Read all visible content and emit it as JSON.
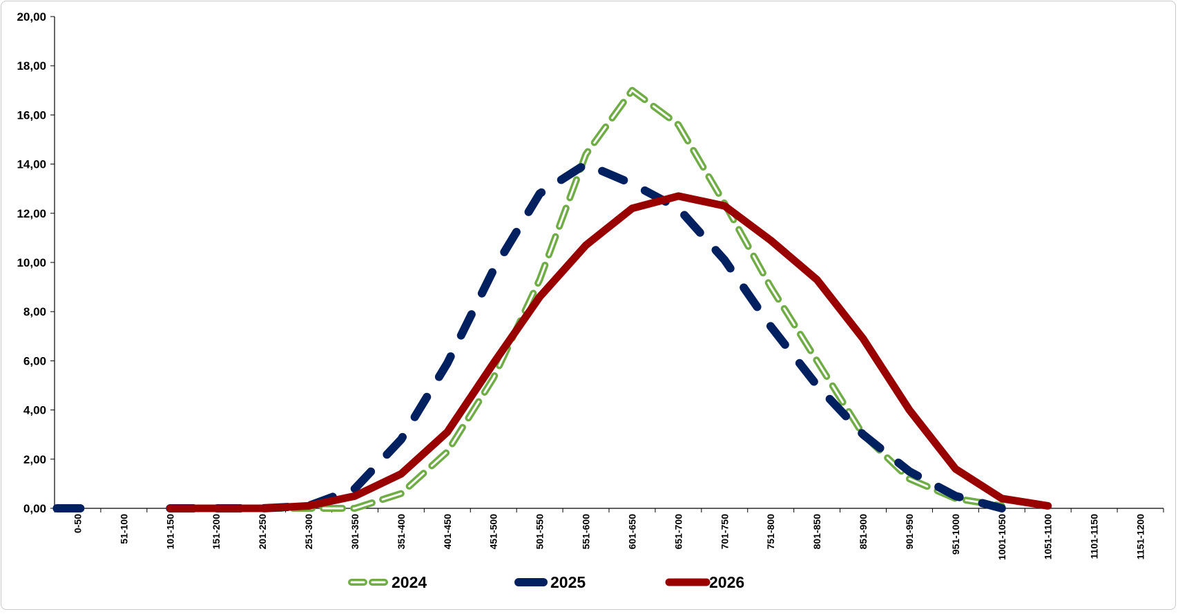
{
  "chart_data": {
    "type": "line",
    "categories": [
      "0-50",
      "51-100",
      "101-150",
      "151-200",
      "201-250",
      "251-300",
      "301-350",
      "351-400",
      "401-450",
      "451-500",
      "501-550",
      "551-600",
      "601-650",
      "651-700",
      "701-750",
      "751-800",
      "801-850",
      "851-900",
      "901-950",
      "951-1000",
      "1001-1050",
      "1051-1100",
      "1101-1150",
      "1151-1200"
    ],
    "yticks": [
      "0,00",
      "2,00",
      "4,00",
      "6,00",
      "8,00",
      "10,00",
      "12,00",
      "14,00",
      "16,00",
      "18,00",
      "20,00"
    ],
    "ylim": [
      0,
      20
    ],
    "grid": false,
    "legend": "bottom",
    "series": [
      {
        "name": "2024",
        "color": "#70ad47",
        "style": "dashed-outline",
        "values": [
          null,
          null,
          null,
          null,
          0,
          0,
          0,
          0.6,
          2.3,
          5.3,
          9.3,
          14.4,
          17.0,
          15.6,
          12.4,
          9.0,
          6.0,
          3.0,
          1.2,
          0.4,
          0.1,
          null,
          null,
          null
        ]
      },
      {
        "name": "2025",
        "color": "#002060",
        "style": "dashed",
        "values": [
          0,
          null,
          0,
          0,
          0,
          0.1,
          0.8,
          2.8,
          5.9,
          9.7,
          12.8,
          14.0,
          13.2,
          12.2,
          10.1,
          7.4,
          5.0,
          3.0,
          1.5,
          0.5,
          0,
          null,
          null,
          null
        ]
      },
      {
        "name": "2026",
        "color": "#990000",
        "style": "solid",
        "values": [
          null,
          null,
          0,
          0,
          0,
          0.1,
          0.5,
          1.4,
          3.1,
          5.9,
          8.6,
          10.7,
          12.2,
          12.7,
          12.3,
          10.9,
          9.3,
          6.9,
          4.0,
          1.6,
          0.4,
          0.1,
          null,
          null
        ]
      }
    ]
  }
}
